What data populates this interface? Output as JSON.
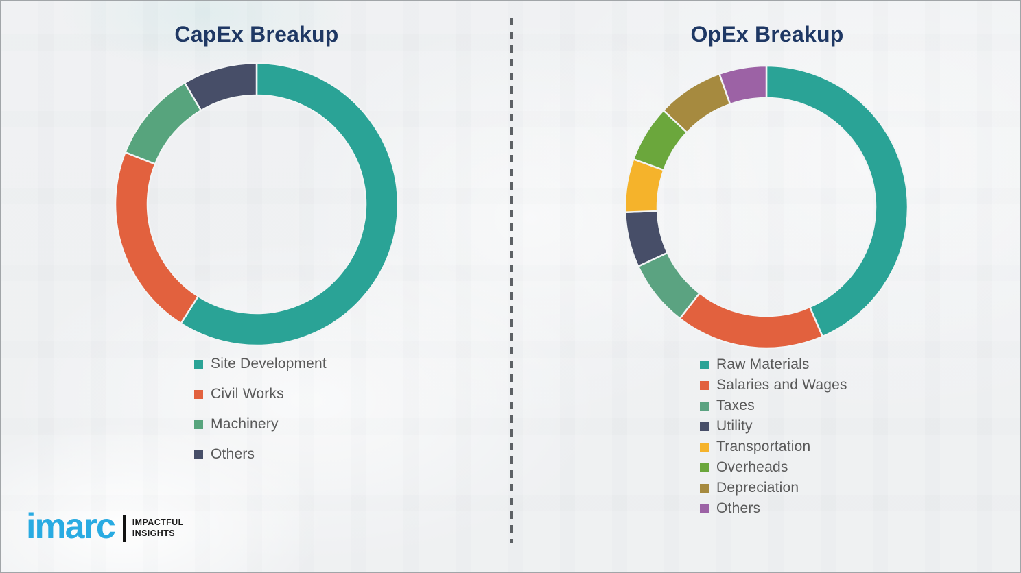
{
  "theme": {
    "background": "#edeff1",
    "title_color": "#1f3864",
    "legend_text_color": "#595959",
    "divider_color": "#5d6165",
    "border_color": "#a1a5a8",
    "slice_gap_color": "#f2f4f5"
  },
  "chart_data": [
    {
      "type": "pie",
      "donut": true,
      "title": "CapEx Breakup",
      "labels": [
        "Site Development",
        "Civil Works",
        "Machinery",
        "Others"
      ],
      "values": [
        59,
        22,
        10.5,
        8.5
      ],
      "colors": [
        "#2aa396",
        "#e2613e",
        "#57a47d",
        "#474e68"
      ],
      "start_angle_deg": 0,
      "direction": "clockwise",
      "legend_position": "below-left"
    },
    {
      "type": "pie",
      "donut": true,
      "title": "OpEx Breakup",
      "labels": [
        "Raw Materials",
        "Salaries and Wages",
        "Taxes",
        "Utility",
        "Transportation",
        "Overheads",
        "Depreciation",
        "Others"
      ],
      "values": [
        43.5,
        17,
        7.6,
        6.3,
        6.1,
        6.5,
        7.6,
        5.4
      ],
      "colors": [
        "#2aa396",
        "#e2613e",
        "#5ba381",
        "#474e68",
        "#f5b32b",
        "#6ba73c",
        "#a68a3f",
        "#9c62a5"
      ],
      "start_angle_deg": 0,
      "direction": "clockwise",
      "legend_position": "below-left"
    }
  ],
  "logo": {
    "brand": "imarc",
    "tagline_line1": "IMPACTFUL",
    "tagline_line2": "INSIGHTS",
    "brand_color": "#29abe2"
  }
}
